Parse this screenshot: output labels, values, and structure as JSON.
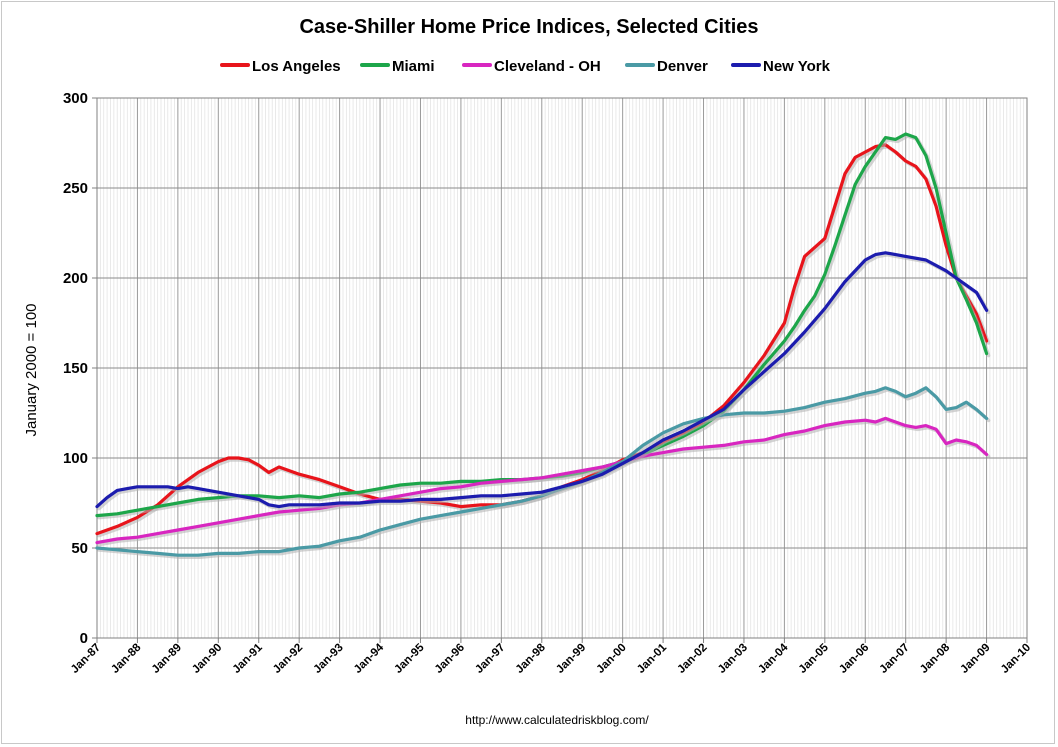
{
  "chart_data": {
    "type": "line",
    "title": "Case-Shiller Home Price Indices, Selected Cities",
    "ylabel": "January 2000 = 100",
    "xlabel": "",
    "ylim": [
      0,
      300
    ],
    "yticks": [
      0,
      50,
      100,
      150,
      200,
      250,
      300
    ],
    "xlim": [
      1987.0,
      2010.0
    ],
    "xtick_labels": [
      "Jan-87",
      "Jan-88",
      "Jan-89",
      "Jan-90",
      "Jan-91",
      "Jan-92",
      "Jan-93",
      "Jan-94",
      "Jan-95",
      "Jan-96",
      "Jan-97",
      "Jan-98",
      "Jan-99",
      "Jan-00",
      "Jan-01",
      "Jan-02",
      "Jan-03",
      "Jan-04",
      "Jan-05",
      "Jan-06",
      "Jan-07",
      "Jan-08",
      "Jan-09",
      "Jan-10"
    ],
    "grid": true,
    "legend_position": "top",
    "source_note": "http://www.calculatedriskblog.com/",
    "series": [
      {
        "name": "Los Angeles",
        "color": "#e8141b",
        "x": [
          1987.0,
          1987.5,
          1988.0,
          1988.5,
          1989.0,
          1989.5,
          1990.0,
          1990.25,
          1990.5,
          1990.75,
          1991.0,
          1991.25,
          1991.5,
          1991.75,
          1992.0,
          1992.5,
          1993.0,
          1993.5,
          1994.0,
          1994.5,
          1995.0,
          1995.5,
          1996.0,
          1996.5,
          1997.0,
          1997.5,
          1998.0,
          1998.5,
          1999.0,
          1999.5,
          2000.0,
          2000.5,
          2001.0,
          2001.5,
          2002.0,
          2002.5,
          2003.0,
          2003.5,
          2004.0,
          2004.25,
          2004.5,
          2004.75,
          2005.0,
          2005.25,
          2005.5,
          2005.75,
          2006.0,
          2006.25,
          2006.5,
          2006.75,
          2007.0,
          2007.25,
          2007.5,
          2007.75,
          2008.0,
          2008.25,
          2008.5,
          2008.75,
          2009.0
        ],
        "y": [
          58,
          62,
          67,
          74,
          84,
          92,
          98,
          100,
          100,
          99,
          96,
          92,
          95,
          93,
          91,
          88,
          84,
          80,
          77,
          77,
          76,
          75,
          73,
          74,
          74,
          76,
          79,
          84,
          88,
          93,
          99,
          103,
          109,
          114,
          120,
          129,
          142,
          157,
          175,
          195,
          212,
          217,
          222,
          240,
          258,
          267,
          270,
          273,
          274,
          270,
          265,
          262,
          255,
          240,
          218,
          200,
          190,
          180,
          165
        ]
      },
      {
        "name": "Miami",
        "color": "#1da64a",
        "x": [
          1987.0,
          1987.5,
          1988.0,
          1988.5,
          1989.0,
          1989.5,
          1990.0,
          1990.5,
          1991.0,
          1991.5,
          1992.0,
          1992.5,
          1993.0,
          1993.5,
          1994.0,
          1994.5,
          1995.0,
          1995.5,
          1996.0,
          1996.5,
          1997.0,
          1997.5,
          1998.0,
          1998.5,
          1999.0,
          1999.5,
          2000.0,
          2000.5,
          2001.0,
          2001.5,
          2002.0,
          2002.5,
          2003.0,
          2003.5,
          2004.0,
          2004.25,
          2004.5,
          2004.75,
          2005.0,
          2005.25,
          2005.5,
          2005.75,
          2006.0,
          2006.25,
          2006.5,
          2006.75,
          2007.0,
          2007.25,
          2007.5,
          2007.75,
          2008.0,
          2008.25,
          2008.5,
          2008.75,
          2009.0
        ],
        "y": [
          68,
          69,
          71,
          73,
          75,
          77,
          78,
          79,
          79,
          78,
          79,
          78,
          80,
          81,
          83,
          85,
          86,
          86,
          87,
          87,
          88,
          88,
          89,
          90,
          92,
          95,
          98,
          102,
          107,
          112,
          118,
          126,
          138,
          152,
          165,
          173,
          182,
          190,
          202,
          218,
          235,
          252,
          262,
          270,
          278,
          277,
          280,
          278,
          268,
          250,
          225,
          200,
          188,
          175,
          158
        ]
      },
      {
        "name": "Cleveland - OH",
        "color": "#d826c0",
        "x": [
          1987.0,
          1987.5,
          1988.0,
          1988.5,
          1989.0,
          1989.5,
          1990.0,
          1990.5,
          1991.0,
          1991.5,
          1992.0,
          1992.5,
          1993.0,
          1993.5,
          1994.0,
          1994.5,
          1995.0,
          1995.5,
          1996.0,
          1996.5,
          1997.0,
          1997.5,
          1998.0,
          1998.5,
          1999.0,
          1999.5,
          2000.0,
          2000.5,
          2001.0,
          2001.5,
          2002.0,
          2002.5,
          2003.0,
          2003.5,
          2004.0,
          2004.5,
          2005.0,
          2005.5,
          2006.0,
          2006.25,
          2006.5,
          2006.75,
          2007.0,
          2007.25,
          2007.5,
          2007.75,
          2008.0,
          2008.25,
          2008.5,
          2008.75,
          2009.0
        ],
        "y": [
          53,
          55,
          56,
          58,
          60,
          62,
          64,
          66,
          68,
          70,
          71,
          72,
          74,
          75,
          77,
          79,
          81,
          83,
          84,
          86,
          87,
          88,
          89,
          91,
          93,
          95,
          98,
          101,
          103,
          105,
          106,
          107,
          109,
          110,
          113,
          115,
          118,
          120,
          121,
          120,
          122,
          120,
          118,
          117,
          118,
          116,
          108,
          110,
          109,
          107,
          102
        ]
      },
      {
        "name": "Denver",
        "color": "#4a9aa5",
        "x": [
          1987.0,
          1987.5,
          1988.0,
          1988.5,
          1989.0,
          1989.5,
          1990.0,
          1990.5,
          1991.0,
          1991.5,
          1992.0,
          1992.5,
          1993.0,
          1993.5,
          1994.0,
          1994.5,
          1995.0,
          1995.5,
          1996.0,
          1996.5,
          1997.0,
          1997.5,
          1998.0,
          1998.5,
          1999.0,
          1999.5,
          2000.0,
          2000.5,
          2001.0,
          2001.5,
          2002.0,
          2002.5,
          2003.0,
          2003.5,
          2004.0,
          2004.5,
          2005.0,
          2005.5,
          2006.0,
          2006.25,
          2006.5,
          2006.75,
          2007.0,
          2007.25,
          2007.5,
          2007.75,
          2008.0,
          2008.25,
          2008.5,
          2008.75,
          2009.0
        ],
        "y": [
          50,
          49,
          48,
          47,
          46,
          46,
          47,
          47,
          48,
          48,
          50,
          51,
          54,
          56,
          60,
          63,
          66,
          68,
          70,
          72,
          74,
          76,
          79,
          83,
          87,
          92,
          98,
          107,
          114,
          119,
          122,
          124,
          125,
          125,
          126,
          128,
          131,
          133,
          136,
          137,
          139,
          137,
          134,
          136,
          139,
          134,
          127,
          128,
          131,
          127,
          122
        ]
      },
      {
        "name": "New York",
        "color": "#1c1cae",
        "x": [
          1987.0,
          1987.25,
          1987.5,
          1987.75,
          1988.0,
          1988.25,
          1988.5,
          1988.75,
          1989.0,
          1989.25,
          1989.5,
          1990.0,
          1990.5,
          1991.0,
          1991.25,
          1991.5,
          1991.75,
          1992.0,
          1992.5,
          1993.0,
          1993.5,
          1994.0,
          1994.5,
          1995.0,
          1995.5,
          1996.0,
          1996.5,
          1997.0,
          1997.5,
          1998.0,
          1998.5,
          1999.0,
          1999.5,
          2000.0,
          2000.5,
          2001.0,
          2001.5,
          2002.0,
          2002.5,
          2003.0,
          2003.5,
          2004.0,
          2004.5,
          2005.0,
          2005.5,
          2006.0,
          2006.25,
          2006.5,
          2006.75,
          2007.0,
          2007.5,
          2008.0,
          2008.25,
          2008.5,
          2008.75,
          2009.0
        ],
        "y": [
          73,
          78,
          82,
          83,
          84,
          84,
          84,
          84,
          83,
          84,
          83,
          81,
          79,
          77,
          74,
          73,
          74,
          74,
          74,
          75,
          75,
          76,
          76,
          77,
          77,
          78,
          79,
          79,
          80,
          81,
          84,
          87,
          91,
          97,
          103,
          110,
          115,
          121,
          127,
          138,
          148,
          158,
          170,
          183,
          198,
          210,
          213,
          214,
          213,
          212,
          210,
          204,
          200,
          196,
          192,
          182
        ]
      }
    ]
  }
}
